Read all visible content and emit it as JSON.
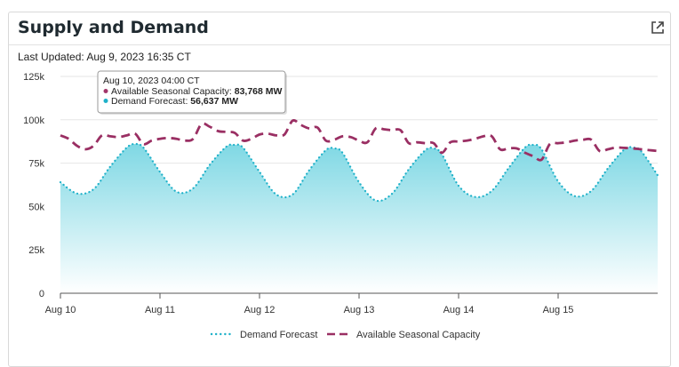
{
  "panel": {
    "title": "Supply and Demand",
    "popout_icon": "external-link-icon",
    "last_updated_label": "Last Updated:",
    "last_updated_value": "Aug 9, 2023 16:35 CT"
  },
  "tooltip": {
    "time": "Aug 10, 2023 04:00 CT",
    "rows": [
      {
        "label": "Available Seasonal Capacity:",
        "value": "83,768 MW",
        "color": "#a2366a"
      },
      {
        "label": "Demand Forecast:",
        "value": "56,637 MW",
        "color": "#1fb1c9"
      }
    ]
  },
  "colors": {
    "demand": "#1fb1c9",
    "demand_fill_top": "#7fd8e4",
    "capacity": "#9a2f63",
    "grid": "#e6e6e6",
    "axis": "#555555"
  },
  "chart_data": {
    "type": "line",
    "x_unit": "hours from Aug 10 00:00 CT",
    "x_ticks": [
      {
        "x": 0,
        "label": "Aug 10"
      },
      {
        "x": 24,
        "label": "Aug 11"
      },
      {
        "x": 48,
        "label": "Aug 12"
      },
      {
        "x": 72,
        "label": "Aug 13"
      },
      {
        "x": 96,
        "label": "Aug 14"
      },
      {
        "x": 120,
        "label": "Aug 15"
      }
    ],
    "xlim": [
      0,
      144
    ],
    "ylim": [
      0,
      125000
    ],
    "y_ticks": [
      {
        "v": 0,
        "label": "0"
      },
      {
        "v": 25000,
        "label": "25k"
      },
      {
        "v": 50000,
        "label": "50k"
      },
      {
        "v": 75000,
        "label": "75k"
      },
      {
        "v": 100000,
        "label": "100k"
      },
      {
        "v": 125000,
        "label": "125k"
      }
    ],
    "grid": true,
    "legend_position": "bottom",
    "series": [
      {
        "name": "Demand Forecast",
        "style": "dotted-area",
        "x": [
          0,
          4,
          8,
          12,
          16,
          18,
          20,
          24,
          28,
          32,
          36,
          40,
          42,
          44,
          48,
          52,
          56,
          60,
          64,
          66,
          68,
          72,
          76,
          80,
          84,
          88,
          90,
          92,
          96,
          100,
          104,
          108,
          112,
          114,
          116,
          120,
          124,
          128,
          132,
          136,
          138,
          140,
          144
        ],
        "y": [
          64000,
          57500,
          60000,
          73000,
          84000,
          86000,
          84000,
          70000,
          58500,
          60500,
          74000,
          84500,
          85500,
          84000,
          70000,
          57000,
          57000,
          71000,
          82500,
          83500,
          81000,
          64000,
          53500,
          57500,
          71500,
          82500,
          83500,
          80000,
          62000,
          55500,
          59000,
          72000,
          84000,
          85500,
          83000,
          64500,
          56000,
          59000,
          72000,
          83000,
          84000,
          82000,
          68000
        ]
      },
      {
        "name": "Available Seasonal Capacity",
        "style": "dashed",
        "x": [
          0,
          2,
          4,
          6,
          8,
          10,
          12,
          14,
          16,
          18,
          20,
          22,
          24,
          26,
          28,
          30,
          32,
          34,
          36,
          38,
          40,
          42,
          44,
          46,
          48,
          50,
          52,
          54,
          56,
          58,
          60,
          62,
          64,
          66,
          68,
          70,
          72,
          74,
          76,
          78,
          80,
          82,
          84,
          86,
          88,
          90,
          92,
          94,
          96,
          98,
          100,
          102,
          104,
          106,
          108,
          110,
          112,
          114,
          116,
          118,
          120,
          122,
          124,
          126,
          128,
          130,
          132,
          134,
          136,
          138,
          140,
          142,
          144
        ],
        "y": [
          91000,
          89000,
          85000,
          83000,
          85000,
          91000,
          90500,
          90000,
          91000,
          92000,
          86000,
          88000,
          89000,
          89500,
          89000,
          88000,
          89000,
          97500,
          96000,
          93500,
          93000,
          92500,
          88000,
          89000,
          91500,
          92000,
          91000,
          91500,
          99500,
          97000,
          95000,
          95500,
          88000,
          88500,
          90500,
          90000,
          88000,
          87000,
          95000,
          94500,
          94000,
          94000,
          86500,
          87000,
          86500,
          86500,
          81000,
          87000,
          87500,
          88000,
          89000,
          90500,
          90500,
          83000,
          83500,
          83500,
          81000,
          79000,
          77000,
          86000,
          86500,
          87000,
          88000,
          88500,
          88500,
          82000,
          83000,
          84000,
          83800,
          83500,
          83000,
          82500,
          82000
        ]
      }
    ],
    "hover": {
      "x": 4,
      "capacity": 83768,
      "demand": 56637
    }
  }
}
